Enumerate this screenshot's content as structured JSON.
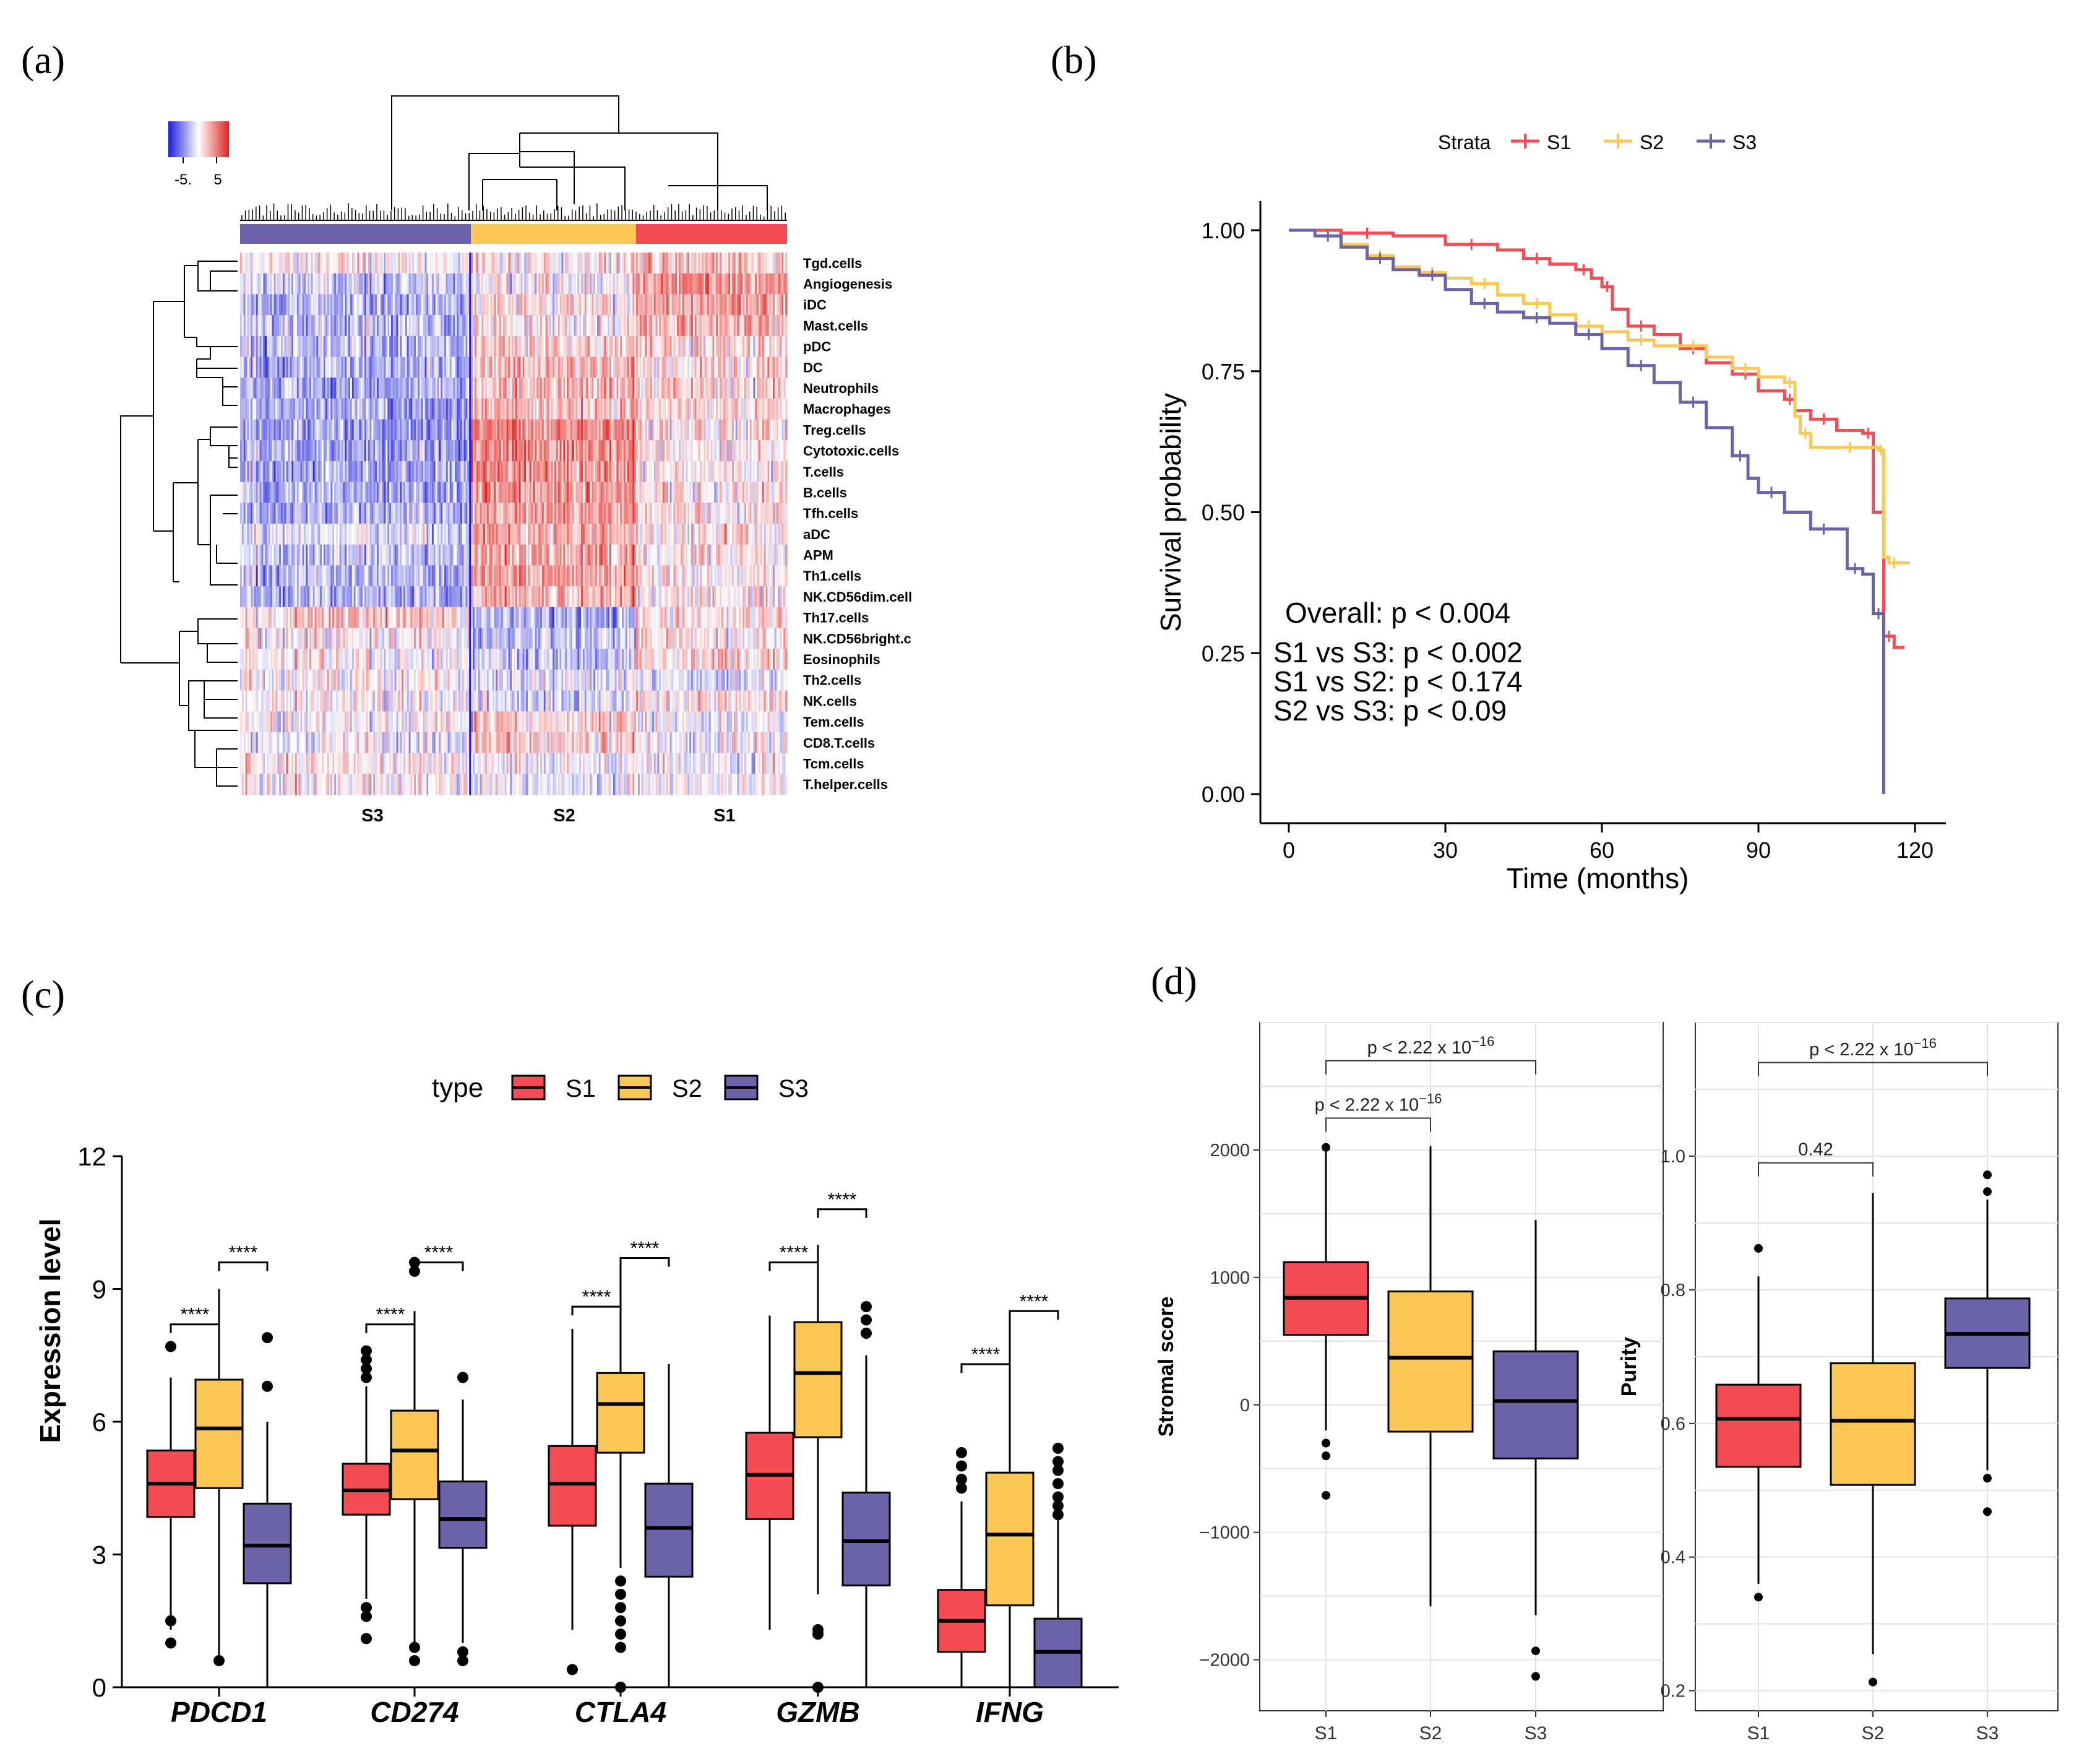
{
  "panels": {
    "a": {
      "label": "(a)"
    },
    "b": {
      "label": "(b)"
    },
    "c": {
      "label": "(c)"
    },
    "d": {
      "label": "(d)"
    }
  },
  "colors": {
    "S1": "#f44b54",
    "S2": "#fbc858",
    "S3": "#6c63ab",
    "low": "#1d1dd8",
    "high": "#e0231f"
  },
  "chart_data": [
    {
      "id": "a",
      "type": "heatmap",
      "title": "",
      "legend": {
        "ticks": [
          "-5.",
          "5"
        ],
        "range": [
          -5,
          5
        ]
      },
      "clusters": [
        {
          "name": "S3",
          "columns": 130
        },
        {
          "name": "S2",
          "columns": 93
        },
        {
          "name": "S1",
          "columns": 85
        }
      ],
      "rows": [
        "Tgd.cells",
        "Angiogenesis",
        "iDC",
        "Mast.cells",
        "pDC",
        "DC",
        "Neutrophils",
        "Macrophages",
        "Treg.cells",
        "Cytotoxic.cells",
        "T.cells",
        "B.cells",
        "Tfh.cells",
        "aDC",
        "APM",
        "Th1.cells",
        "NK.CD56dim.cell",
        "Th17.cells",
        "NK.CD56bright.c",
        "Eosinophils",
        "Th2.cells",
        "NK.cells",
        "Tem.cells",
        "CD8.T.cells",
        "Tcm.cells",
        "T.helper.cells"
      ],
      "row_group_means": {
        "S3": [
          0.1,
          -0.8,
          -1.1,
          -1.0,
          -0.9,
          -1.0,
          -1.2,
          -1.2,
          -1.3,
          -1.3,
          -1.2,
          -1.1,
          -1.1,
          -0.5,
          -0.7,
          -1.0,
          -1.1,
          0.6,
          0.2,
          0.1,
          0.2,
          0.0,
          0.0,
          -0.2,
          0.3,
          0.2
        ],
        "S2": [
          0.2,
          0.0,
          0.3,
          0.3,
          0.8,
          0.9,
          0.9,
          1.0,
          1.7,
          1.6,
          1.6,
          1.5,
          1.5,
          1.2,
          1.2,
          1.3,
          1.1,
          -1.1,
          -0.9,
          -0.8,
          -0.4,
          -0.6,
          0.7,
          0.6,
          0.0,
          -0.2
        ],
        "S1": [
          0.9,
          1.5,
          1.3,
          1.2,
          0.6,
          0.5,
          0.6,
          0.5,
          0.3,
          0.2,
          0.3,
          0.4,
          0.3,
          0.4,
          0.3,
          0.2,
          0.3,
          0.4,
          0.5,
          0.6,
          -0.4,
          0.4,
          -0.2,
          -0.1,
          -0.1,
          0.0
        ]
      },
      "xlabels": [
        "S3",
        "S2",
        "S1"
      ]
    },
    {
      "id": "b",
      "type": "line",
      "title": "",
      "xlabel": "Time (months)",
      "ylabel": "Survival probability",
      "xlim": [
        0,
        120
      ],
      "ylim": [
        0,
        1
      ],
      "xticks": [
        "0",
        "30",
        "60",
        "90",
        "120"
      ],
      "yticks": [
        "0.00",
        "0.25",
        "0.50",
        "0.75",
        "1.00"
      ],
      "legend_title": "Strata",
      "series": [
        {
          "name": "S1",
          "x": [
            0,
            10,
            20,
            30,
            40,
            45,
            50,
            55,
            58,
            60,
            62,
            65,
            70,
            75,
            80,
            85,
            90,
            95,
            97,
            100,
            105,
            110,
            112,
            114,
            116,
            118
          ],
          "y": [
            1.0,
            0.995,
            0.99,
            0.975,
            0.965,
            0.95,
            0.94,
            0.93,
            0.915,
            0.9,
            0.86,
            0.83,
            0.815,
            0.79,
            0.765,
            0.745,
            0.715,
            0.7,
            0.68,
            0.665,
            0.645,
            0.64,
            0.5,
            0.28,
            0.26,
            0.26
          ]
        },
        {
          "name": "S2",
          "x": [
            0,
            5,
            10,
            15,
            20,
            25,
            30,
            35,
            40,
            45,
            50,
            55,
            60,
            65,
            70,
            75,
            80,
            85,
            90,
            95,
            97,
            98,
            100,
            105,
            110,
            113,
            114,
            115,
            117,
            119
          ],
          "y": [
            1.0,
            0.99,
            0.975,
            0.955,
            0.935,
            0.925,
            0.915,
            0.905,
            0.885,
            0.87,
            0.85,
            0.83,
            0.82,
            0.805,
            0.795,
            0.795,
            0.775,
            0.755,
            0.74,
            0.73,
            0.67,
            0.64,
            0.615,
            0.615,
            0.615,
            0.61,
            0.42,
            0.41,
            0.41,
            0.41
          ]
        },
        {
          "name": "S3",
          "x": [
            0,
            5,
            10,
            15,
            20,
            25,
            30,
            35,
            40,
            45,
            50,
            55,
            60,
            65,
            70,
            75,
            80,
            85,
            88,
            90,
            95,
            100,
            105,
            107,
            110,
            112,
            114
          ],
          "y": [
            1.0,
            0.99,
            0.97,
            0.95,
            0.93,
            0.92,
            0.895,
            0.87,
            0.855,
            0.845,
            0.835,
            0.815,
            0.79,
            0.76,
            0.73,
            0.695,
            0.65,
            0.6,
            0.56,
            0.535,
            0.5,
            0.47,
            0.47,
            0.4,
            0.39,
            0.32,
            0.0
          ]
        }
      ],
      "annotations": [
        "Overall: p < 0.004",
        "S1 vs S3: p < 0.002",
        "S1 vs S2: p < 0.174",
        "S2 vs S3: p < 0.09"
      ]
    },
    {
      "id": "c",
      "type": "box",
      "title": "",
      "xlabel": "",
      "ylabel": "Expression level",
      "ylim": [
        0,
        12
      ],
      "yticks": [
        "0",
        "3",
        "6",
        "9",
        "12"
      ],
      "legend_title": "type",
      "legend_items": [
        "S1",
        "S2",
        "S3"
      ],
      "categories": [
        "PDCD1",
        "CD274",
        "CTLA4",
        "GZMB",
        "IFNG"
      ],
      "boxes": {
        "PDCD1": {
          "S1": {
            "lw": 1.3,
            "q1": 3.85,
            "med": 4.6,
            "q3": 5.35,
            "uw": 7.0,
            "out": [
              7.7,
              1.0,
              1.5
            ]
          },
          "S2": {
            "lw": 0.7,
            "q1": 4.5,
            "med": 5.85,
            "q3": 6.95,
            "uw": 9.0,
            "out": [
              0.6
            ]
          },
          "S3": {
            "lw": 0.0,
            "q1": 2.35,
            "med": 3.2,
            "q3": 4.15,
            "uw": 6.0,
            "out": [
              6.8,
              7.9
            ]
          }
        },
        "CD274": {
          "S1": {
            "lw": 2.0,
            "q1": 3.9,
            "med": 4.45,
            "q3": 5.05,
            "uw": 6.8,
            "out": [
              7.0,
              7.2,
              7.4,
              7.6,
              1.1,
              1.6,
              1.8
            ]
          },
          "S2": {
            "lw": 1.0,
            "q1": 4.25,
            "med": 5.35,
            "q3": 6.25,
            "uw": 8.5,
            "out": [
              9.4,
              9.6,
              0.6,
              0.9
            ]
          },
          "S3": {
            "lw": 1.0,
            "q1": 3.15,
            "med": 3.8,
            "q3": 4.65,
            "uw": 6.5,
            "out": [
              7.0,
              0.6,
              0.8
            ]
          }
        },
        "CTLA4": {
          "S1": {
            "lw": 1.3,
            "q1": 3.65,
            "med": 4.6,
            "q3": 5.45,
            "uw": 8.1,
            "out": [
              0.4
            ]
          },
          "S2": {
            "lw": 2.7,
            "q1": 5.3,
            "med": 6.4,
            "q3": 7.1,
            "uw": 9.7,
            "out": [
              1.2,
              1.5,
              1.8,
              2.1,
              2.4,
              0.9,
              0.0
            ]
          },
          "S3": {
            "lw": 0.0,
            "q1": 2.5,
            "med": 3.6,
            "q3": 4.6,
            "uw": 7.3,
            "out": []
          }
        },
        "GZMB": {
          "S1": {
            "lw": 1.3,
            "q1": 3.8,
            "med": 4.8,
            "q3": 5.75,
            "uw": 8.4,
            "out": []
          },
          "S2": {
            "lw": 2.1,
            "q1": 5.65,
            "med": 7.1,
            "q3": 8.25,
            "uw": 10.0,
            "out": [
              1.2,
              1.3,
              0.0
            ]
          },
          "S3": {
            "lw": 0.0,
            "q1": 2.3,
            "med": 3.3,
            "q3": 4.4,
            "uw": 7.5,
            "out": [
              8.0,
              8.3,
              8.6
            ]
          }
        },
        "IFNG": {
          "S1": {
            "lw": 0.0,
            "q1": 0.8,
            "med": 1.5,
            "q3": 2.2,
            "uw": 4.2,
            "out": [
              4.5,
              4.7,
              5.0,
              5.3
            ]
          },
          "S2": {
            "lw": 0.0,
            "q1": 1.85,
            "med": 3.45,
            "q3": 4.85,
            "uw": 8.5,
            "out": []
          },
          "S3": {
            "lw": 0.0,
            "q1": 0.0,
            "med": 0.8,
            "q3": 1.55,
            "uw": 3.8,
            "out": [
              3.9,
              4.1,
              4.3,
              4.6,
              4.9,
              5.1,
              5.4
            ]
          }
        }
      },
      "sig_label": "****",
      "comparisons": [
        {
          "cat": "PDCD1",
          "from": "S1",
          "to": "S2",
          "y": 8.2
        },
        {
          "cat": "PDCD1",
          "from": "S2",
          "to": "S3",
          "y": 9.6
        },
        {
          "cat": "CD274",
          "from": "S1",
          "to": "S2",
          "y": 8.2
        },
        {
          "cat": "CD274",
          "from": "S2",
          "to": "S3",
          "y": 9.6
        },
        {
          "cat": "CTLA4",
          "from": "S1",
          "to": "S2",
          "y": 8.6
        },
        {
          "cat": "CTLA4",
          "from": "S2",
          "to": "S3",
          "y": 9.7
        },
        {
          "cat": "GZMB",
          "from": "S1",
          "to": "S2",
          "y": 9.6
        },
        {
          "cat": "GZMB",
          "from": "S2",
          "to": "S3",
          "y": 10.8
        },
        {
          "cat": "IFNG",
          "from": "S1",
          "to": "S2",
          "y": 7.3
        },
        {
          "cat": "IFNG",
          "from": "S2",
          "to": "S3",
          "y": 8.5
        }
      ]
    },
    {
      "id": "d1",
      "type": "box",
      "title": "",
      "xlabel": "",
      "ylabel": "Stromal score",
      "ylim": [
        -2400,
        3000
      ],
      "yticks": [
        "−2000",
        "−1000",
        "0",
        "1000",
        "2000"
      ],
      "ytick_values": [
        -2000,
        -1000,
        0,
        1000,
        2000
      ],
      "categories": [
        "S1",
        "S2",
        "S3"
      ],
      "boxes": {
        "S1": {
          "lw": -200,
          "q1": 550,
          "med": 840,
          "q3": 1120,
          "uw": 2000,
          "out": [
            -300,
            -400,
            -710,
            2020
          ]
        },
        "S2": {
          "lw": -1580,
          "q1": -210,
          "med": 370,
          "q3": 890,
          "uw": 2030,
          "out": []
        },
        "S3": {
          "lw": -1650,
          "q1": -420,
          "med": 30,
          "q3": 420,
          "uw": 1450,
          "out": [
            -1930,
            -2130
          ]
        }
      },
      "comparisons": [
        {
          "from": "S1",
          "to": "S3",
          "y": 2700,
          "label": "p < 2.22 x 10",
          "sup": "−16"
        },
        {
          "from": "S1",
          "to": "S2",
          "y": 2250,
          "label": "p < 2.22 x 10",
          "sup": "−16"
        }
      ]
    },
    {
      "id": "d2",
      "type": "box",
      "title": "",
      "xlabel": "",
      "ylabel": "Purity",
      "ylim": [
        0.17,
        1.2
      ],
      "yticks": [
        "0.2",
        "0.4",
        "0.6",
        "0.8",
        "1.0"
      ],
      "ytick_values": [
        0.2,
        0.4,
        0.6,
        0.8,
        1.0
      ],
      "categories": [
        "S1",
        "S2",
        "S3"
      ],
      "boxes": {
        "S1": {
          "lw": 0.36,
          "q1": 0.535,
          "med": 0.607,
          "q3": 0.658,
          "uw": 0.82,
          "out": [
            0.862,
            0.34
          ]
        },
        "S2": {
          "lw": 0.255,
          "q1": 0.508,
          "med": 0.604,
          "q3": 0.69,
          "uw": 0.945,
          "out": [
            0.213
          ]
        },
        "S3": {
          "lw": 0.53,
          "q1": 0.683,
          "med": 0.734,
          "q3": 0.787,
          "uw": 0.935,
          "out": [
            0.972,
            0.947,
            0.518,
            0.468
          ]
        }
      },
      "comparisons": [
        {
          "from": "S1",
          "to": "S3",
          "y": 1.14,
          "label": "p < 2.22 x 10",
          "sup": "−16"
        },
        {
          "from": "S1",
          "to": "S2",
          "y": 0.99,
          "label": "0.42",
          "sup": ""
        }
      ]
    }
  ]
}
